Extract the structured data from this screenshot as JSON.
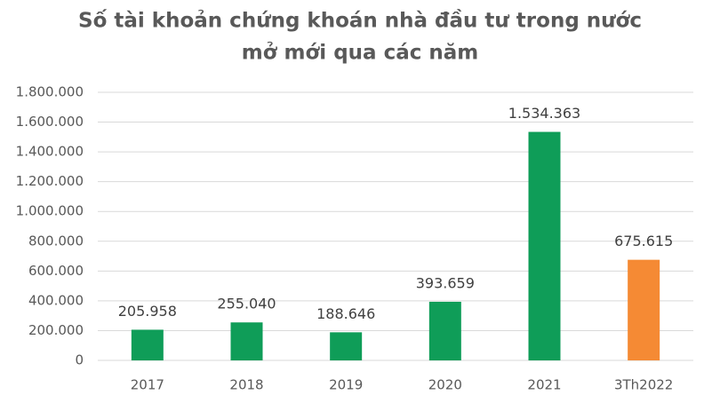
{
  "chart_data": {
    "type": "bar",
    "title": [
      "Số tài khoản chứng khoán nhà đầu tư trong nước",
      "mở mới qua các năm"
    ],
    "categories": [
      "2017",
      "2018",
      "2019",
      "2020",
      "2021",
      "3Th2022"
    ],
    "values": [
      205958,
      255040,
      188646,
      393659,
      1534363,
      675615
    ],
    "value_labels": [
      "205.958",
      "255.040",
      "188.646",
      "393.659",
      "1.534.363",
      "675.615"
    ],
    "colors": [
      "#0f9d58",
      "#0f9d58",
      "#0f9d58",
      "#0f9d58",
      "#0f9d58",
      "#f58a34"
    ],
    "ylim": [
      0,
      1800000
    ],
    "yticks": [
      0,
      {
        "value": 200000,
        "label": "200.000"
      },
      {
        "value": 400000,
        "label": "400.000"
      },
      {
        "value": 600000,
        "label": "600.000"
      },
      {
        "value": 800000,
        "label": "800.000"
      },
      {
        "value": 1000000,
        "label": "1.000.000"
      },
      {
        "value": 1200000,
        "label": "1.200.000"
      },
      {
        "value": 1400000,
        "label": "1.400.000"
      },
      {
        "value": 1600000,
        "label": "1.600.000"
      },
      {
        "value": 1800000,
        "label": "1.800.000"
      }
    ],
    "grid": true
  }
}
